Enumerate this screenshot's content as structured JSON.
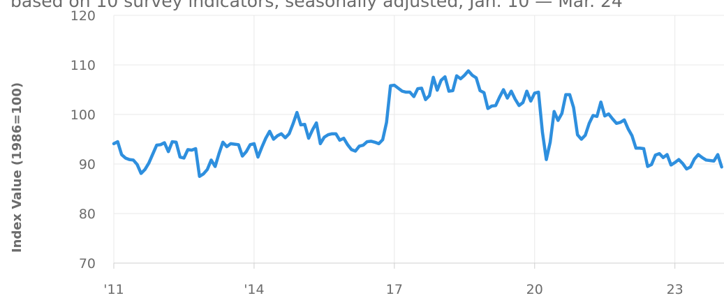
{
  "chart_data": {
    "type": "line",
    "subtitle": "based on 10 survey indicators, seasonally adjusted, Jan. 10 — Mar. 24",
    "y_label": "Index Value (1986=100)",
    "color": "#2e8fde",
    "grid": true,
    "xlim": [
      2011,
      2024.05
    ],
    "xticks": [
      {
        "value": 2011,
        "label": "'11"
      },
      {
        "value": 2014,
        "label": "'14"
      },
      {
        "value": 2017,
        "label": "17"
      },
      {
        "value": 2020,
        "label": "20"
      },
      {
        "value": 2023,
        "label": "23"
      }
    ],
    "ylim": [
      70,
      120
    ],
    "yticks": [
      70,
      80,
      90,
      100,
      110,
      120
    ],
    "x": [
      2011,
      2011.083,
      2011.167,
      2011.25,
      2011.333,
      2011.417,
      2011.5,
      2011.583,
      2011.667,
      2011.75,
      2011.833,
      2011.917,
      2012,
      2012.083,
      2012.167,
      2012.25,
      2012.333,
      2012.417,
      2012.5,
      2012.583,
      2012.667,
      2012.75,
      2012.833,
      2012.917,
      2013,
      2013.083,
      2013.167,
      2013.25,
      2013.333,
      2013.417,
      2013.5,
      2013.583,
      2013.667,
      2013.75,
      2013.833,
      2013.917,
      2014,
      2014.083,
      2014.167,
      2014.25,
      2014.333,
      2014.417,
      2014.5,
      2014.583,
      2014.667,
      2014.75,
      2014.833,
      2014.917,
      2015,
      2015.083,
      2015.167,
      2015.25,
      2015.333,
      2015.417,
      2015.5,
      2015.583,
      2015.667,
      2015.75,
      2015.833,
      2015.917,
      2016,
      2016.083,
      2016.167,
      2016.25,
      2016.333,
      2016.417,
      2016.5,
      2016.583,
      2016.667,
      2016.75,
      2016.833,
      2016.917,
      2017,
      2017.083,
      2017.167,
      2017.25,
      2017.333,
      2017.417,
      2017.5,
      2017.583,
      2017.667,
      2017.75,
      2017.833,
      2017.917,
      2018,
      2018.083,
      2018.167,
      2018.25,
      2018.333,
      2018.417,
      2018.5,
      2018.583,
      2018.667,
      2018.75,
      2018.833,
      2018.917,
      2019,
      2019.083,
      2019.167,
      2019.25,
      2019.333,
      2019.417,
      2019.5,
      2019.583,
      2019.667,
      2019.75,
      2019.833,
      2019.917,
      2020,
      2020.083,
      2020.167,
      2020.25,
      2020.333,
      2020.417,
      2020.5,
      2020.583,
      2020.667,
      2020.75,
      2020.833,
      2020.917,
      2021,
      2021.083,
      2021.167,
      2021.25,
      2021.333,
      2021.417,
      2021.5,
      2021.583,
      2021.667,
      2021.75,
      2021.833,
      2021.917,
      2022,
      2022.083,
      2022.167,
      2022.25,
      2022.333,
      2022.417,
      2022.5,
      2022.583,
      2022.667,
      2022.75,
      2022.833,
      2022.917,
      2023,
      2023.083,
      2023.167,
      2023.25,
      2023.333,
      2023.417,
      2023.5,
      2023.583,
      2023.667,
      2023.75,
      2023.833,
      2023.917,
      2024
    ],
    "values": [
      94.1,
      94.5,
      91.9,
      91.2,
      90.9,
      90.8,
      89.9,
      88.1,
      88.9,
      90.2,
      92.0,
      93.8,
      93.9,
      94.3,
      92.5,
      94.5,
      94.4,
      91.4,
      91.2,
      92.9,
      92.8,
      93.1,
      87.5,
      88.0,
      88.9,
      90.8,
      89.5,
      92.1,
      94.4,
      93.5,
      94.1,
      94.0,
      93.9,
      91.6,
      92.5,
      93.9,
      94.1,
      91.4,
      93.4,
      95.2,
      96.6,
      95.0,
      95.7,
      96.1,
      95.3,
      96.1,
      98.1,
      100.4,
      97.9,
      98.0,
      95.2,
      96.9,
      98.3,
      94.1,
      95.4,
      95.9,
      96.1,
      96.1,
      94.8,
      95.2,
      93.9,
      92.9,
      92.6,
      93.6,
      93.8,
      94.5,
      94.6,
      94.4,
      94.1,
      94.9,
      98.4,
      105.8,
      105.9,
      105.3,
      104.7,
      104.5,
      104.5,
      103.6,
      105.2,
      105.3,
      103.0,
      103.8,
      107.5,
      104.9,
      106.9,
      107.6,
      104.7,
      104.8,
      107.8,
      107.2,
      107.9,
      108.8,
      107.9,
      107.4,
      104.8,
      104.4,
      101.2,
      101.7,
      101.8,
      103.5,
      105.0,
      103.3,
      104.7,
      103.1,
      101.8,
      102.4,
      104.7,
      102.7,
      104.3,
      104.5,
      96.4,
      90.9,
      94.4,
      100.6,
      98.8,
      100.2,
      104.0,
      104.0,
      101.4,
      95.9,
      95.0,
      95.8,
      98.2,
      99.8,
      99.6,
      102.5,
      99.7,
      100.1,
      99.1,
      98.2,
      98.4,
      98.9,
      97.1,
      95.7,
      93.2,
      93.2,
      93.1,
      89.5,
      89.9,
      91.8,
      92.1,
      91.3,
      91.9,
      89.8,
      90.3,
      90.9,
      90.1,
      89.0,
      89.4,
      91.0,
      91.9,
      91.3,
      90.8,
      90.7,
      90.6,
      91.9,
      89.4
    ]
  }
}
